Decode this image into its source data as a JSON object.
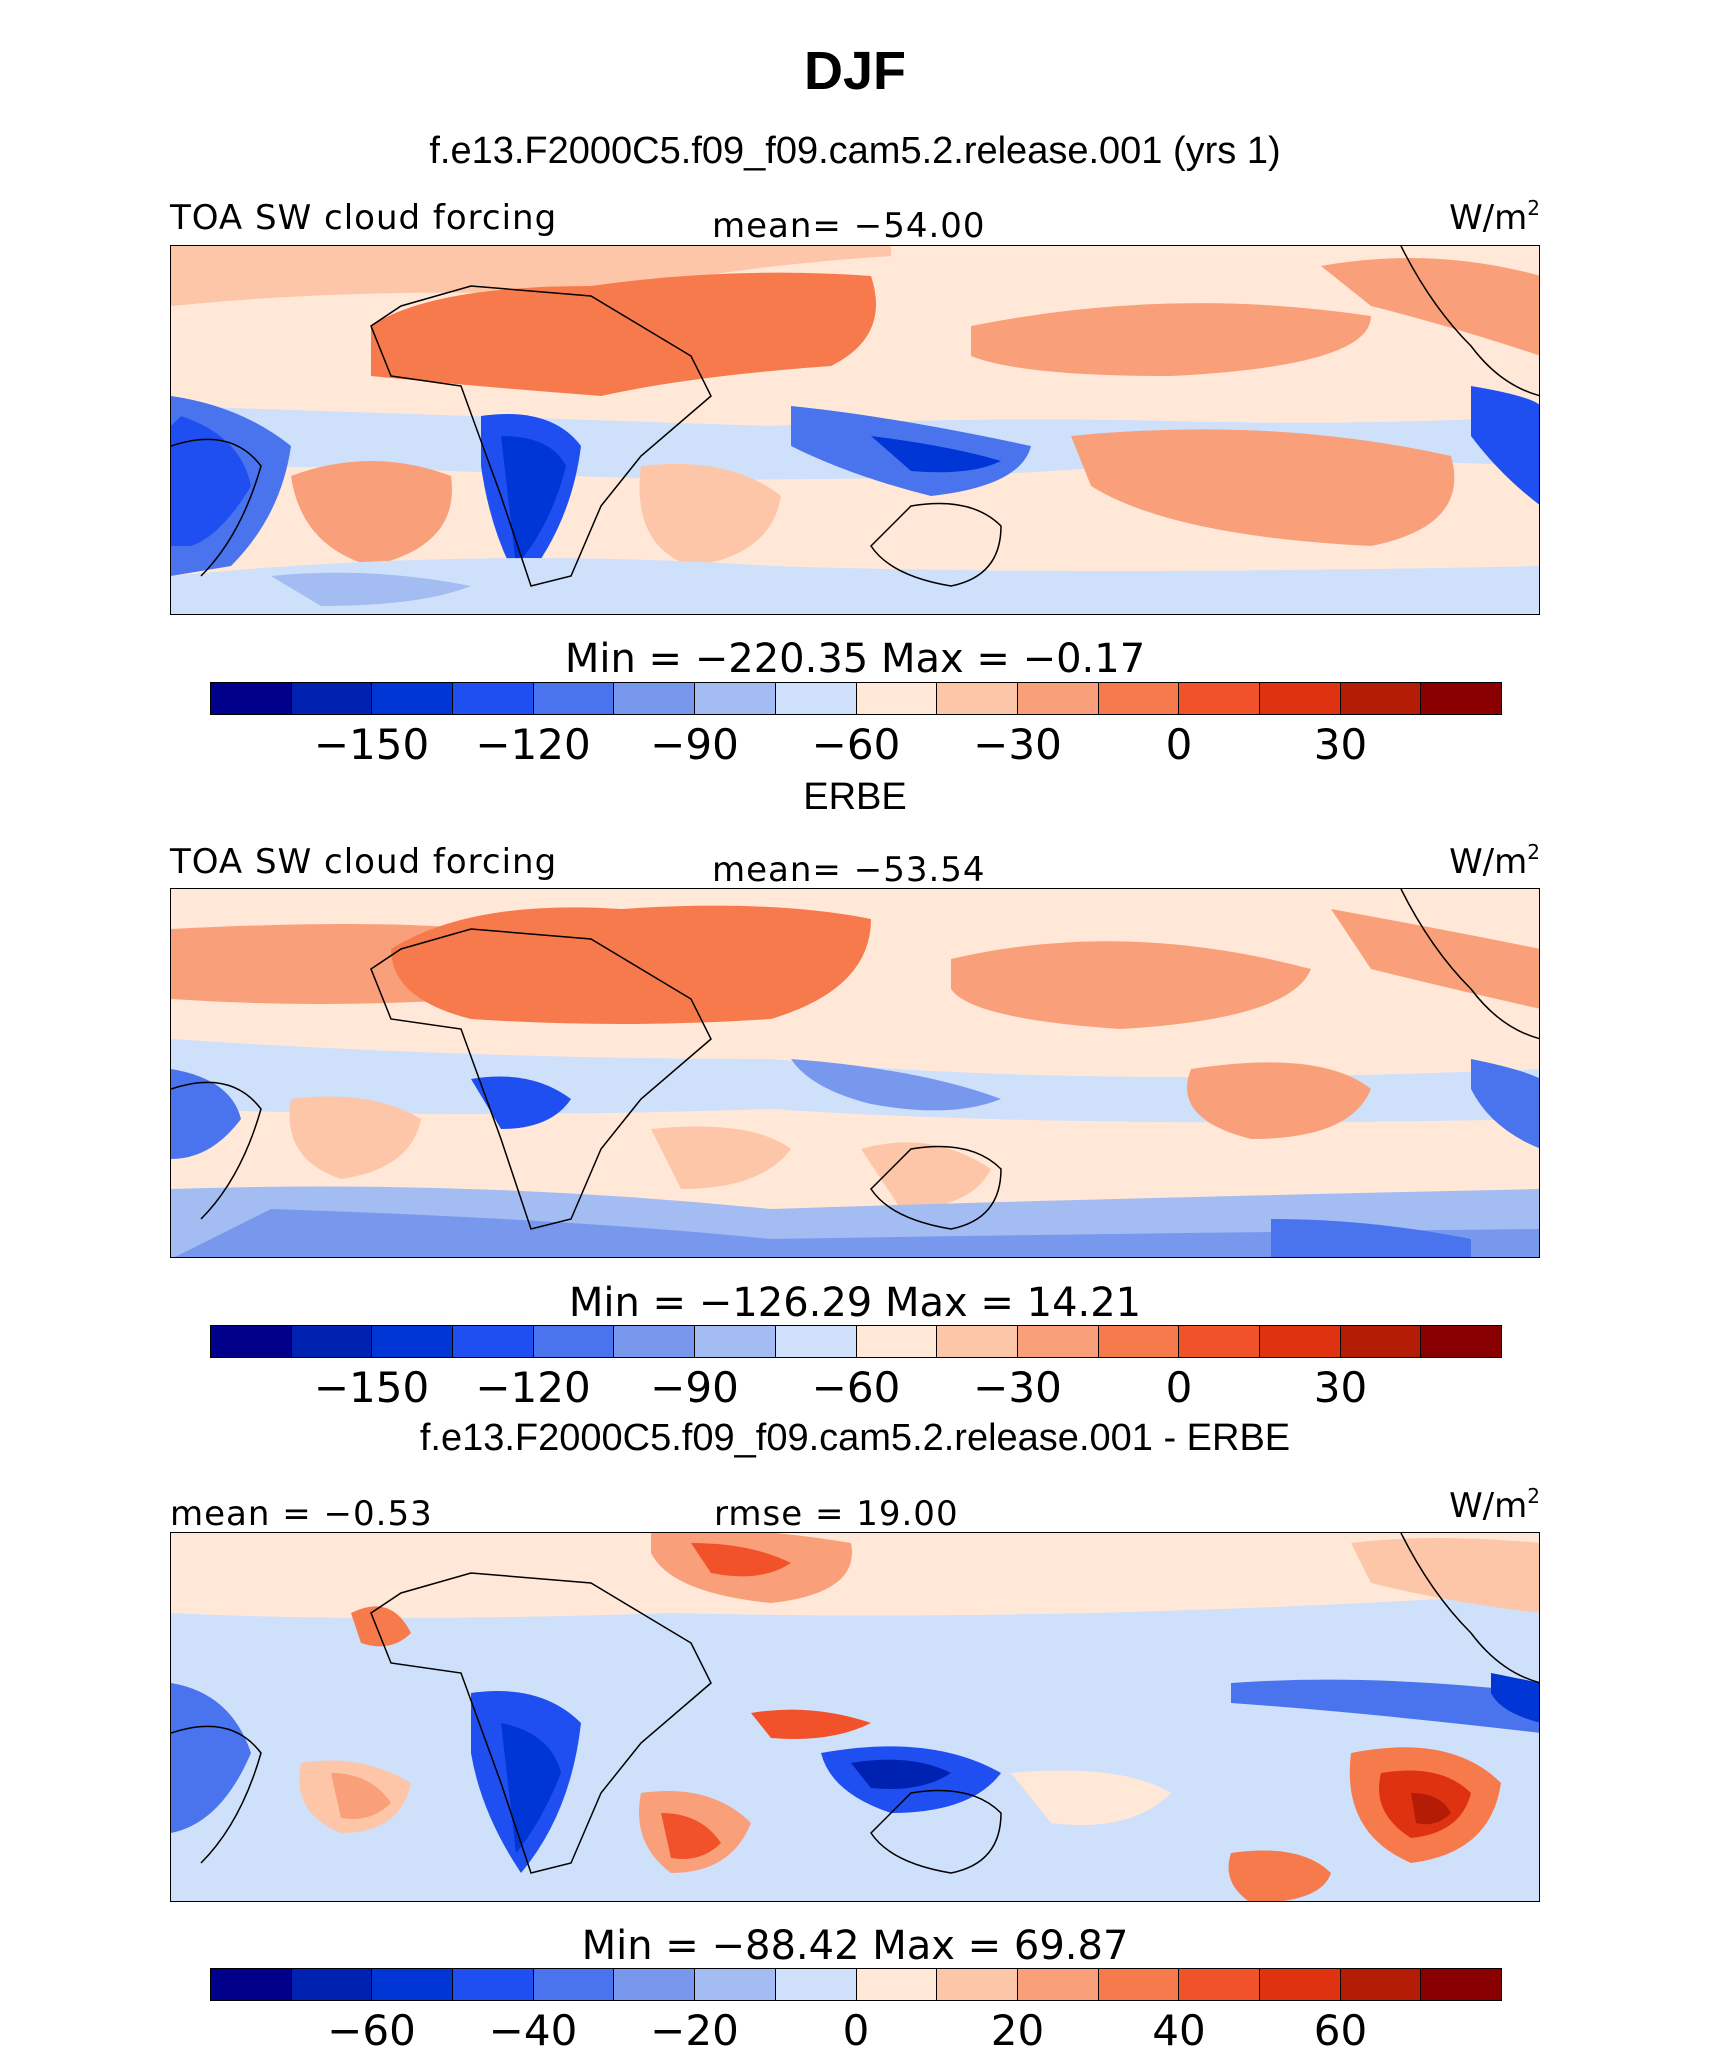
{
  "title": "DJF",
  "panels": [
    {
      "id": "model",
      "subtitle": "f.e13.F2000C5.f09_f09.cam5.2.release.001 (yrs 1)",
      "left_label": "TOA SW cloud forcing",
      "center_label": "mean= −54.00",
      "units_base": "W/m",
      "units_exp": "2",
      "minmax": "Min  =  −220.35  Max  =   −0.17",
      "colorbar": {
        "colors": [
          "#00008b",
          "#0022b0",
          "#0035d6",
          "#1f4ff0",
          "#4a74ee",
          "#7898ee",
          "#a3bcf2",
          "#cfe0fb",
          "#ffe8d8",
          "#fdc6a8",
          "#f9a07a",
          "#f77a4c",
          "#f2522a",
          "#df3210",
          "#b41c06",
          "#8a0000"
        ],
        "ticks": [
          "−150",
          "−120",
          "−90",
          "−60",
          "−30",
          "0",
          "30"
        ],
        "tick_positions": [
          2,
          4,
          6,
          8,
          10,
          12,
          14
        ]
      }
    },
    {
      "id": "obs",
      "subtitle": "ERBE",
      "left_label": "TOA SW cloud forcing",
      "center_label": "mean= −53.54",
      "units_base": "W/m",
      "units_exp": "2",
      "minmax": "Min  =  −126.29  Max  =    14.21",
      "colorbar": {
        "colors": [
          "#00008b",
          "#0022b0",
          "#0035d6",
          "#1f4ff0",
          "#4a74ee",
          "#7898ee",
          "#a3bcf2",
          "#cfe0fb",
          "#ffe8d8",
          "#fdc6a8",
          "#f9a07a",
          "#f77a4c",
          "#f2522a",
          "#df3210",
          "#b41c06",
          "#8a0000"
        ],
        "ticks": [
          "−150",
          "−120",
          "−90",
          "−60",
          "−30",
          "0",
          "30"
        ],
        "tick_positions": [
          2,
          4,
          6,
          8,
          10,
          12,
          14
        ]
      }
    },
    {
      "id": "diff",
      "subtitle": "f.e13.F2000C5.f09_f09.cam5.2.release.001 - ERBE",
      "left_label": "mean =  −0.53",
      "center_label": "rmse =   19.00",
      "units_base": "W/m",
      "units_exp": "2",
      "minmax": "Min  =  −88.42  Max  =   69.87",
      "colorbar": {
        "colors": [
          "#00008b",
          "#0022b0",
          "#0035d6",
          "#1f4ff0",
          "#4a74ee",
          "#7898ee",
          "#a3bcf2",
          "#cfe0fb",
          "#ffe8d8",
          "#fdc6a8",
          "#f9a07a",
          "#f77a4c",
          "#f2522a",
          "#df3210",
          "#b41c06",
          "#8a0000"
        ],
        "ticks": [
          "−60",
          "−40",
          "−20",
          "0",
          "20",
          "40",
          "60"
        ],
        "tick_positions": [
          2,
          4,
          6,
          8,
          10,
          12,
          14
        ]
      }
    }
  ]
}
